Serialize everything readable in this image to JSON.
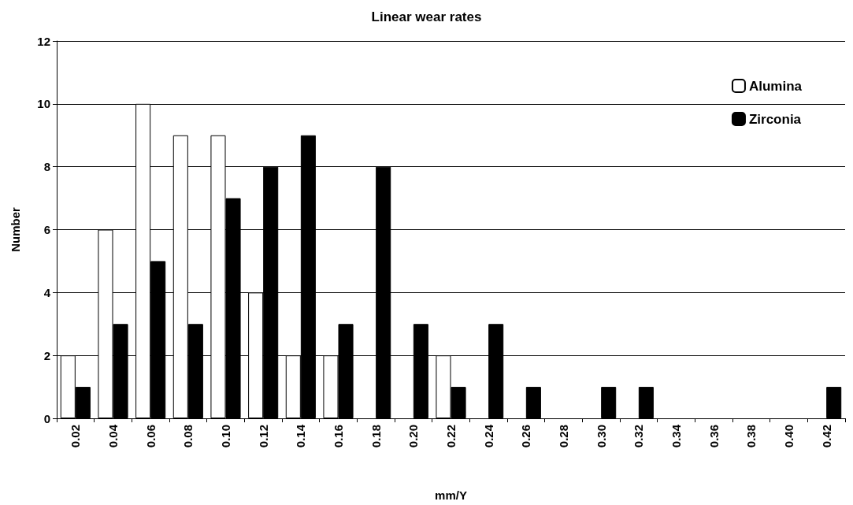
{
  "chart_data": {
    "type": "bar",
    "title": "Linear wear rates",
    "xlabel": "mm/Y",
    "ylabel": "Number",
    "categories": [
      "0.02",
      "0.04",
      "0.06",
      "0.08",
      "0.10",
      "0.12",
      "0.14",
      "0.16",
      "0.18",
      "0.20",
      "0.22",
      "0.24",
      "0.26",
      "0.28",
      "0.30",
      "0.32",
      "0.34",
      "0.36",
      "0.38",
      "0.40",
      "0.42"
    ],
    "series": [
      {
        "name": "Alumina",
        "color": "#ffffff",
        "values": [
          2,
          6,
          10,
          9,
          9,
          4,
          2,
          2,
          0,
          0,
          2,
          0,
          0,
          0,
          0,
          0,
          0,
          0,
          0,
          0,
          0
        ]
      },
      {
        "name": "Zirconia",
        "color": "#000000",
        "values": [
          1,
          3,
          5,
          3,
          7,
          8,
          9,
          3,
          8,
          3,
          1,
          3,
          1,
          0,
          1,
          1,
          0,
          0,
          0,
          0,
          1
        ]
      }
    ],
    "ylim": [
      0,
      12
    ],
    "yticks": [
      0,
      2,
      4,
      6,
      8,
      10,
      12
    ],
    "grid": "y",
    "legend": "top right"
  }
}
